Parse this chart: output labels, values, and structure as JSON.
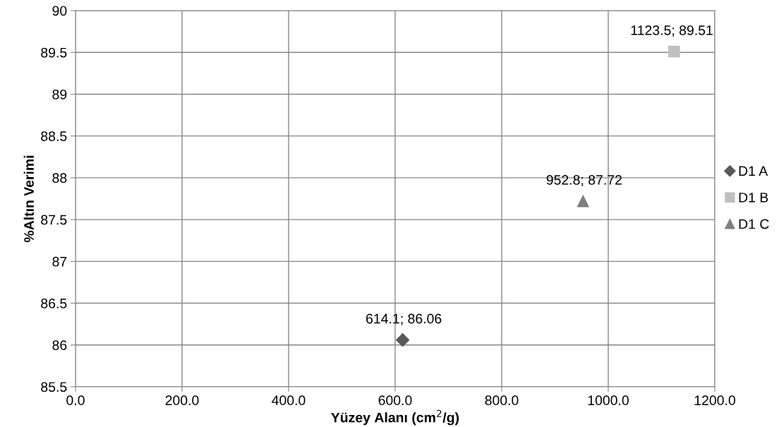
{
  "chart_data": {
    "type": "scatter",
    "xlabel": "Yüzey Alanı (cm$^{2}$/g)",
    "ylabel": "%Altın Verimi",
    "series": [
      {
        "name": "D1 A",
        "color": "#595959",
        "marker": "diamond",
        "x": [
          614.1
        ],
        "values": [
          86.06
        ],
        "value_labels": [
          "614.1; 86.06"
        ]
      },
      {
        "name": "D1 B",
        "color": "#bfbfbf",
        "marker": "square",
        "x": [
          1123.5
        ],
        "values": [
          89.51
        ],
        "value_labels": [
          "1123.5; 89.51"
        ]
      },
      {
        "name": "D1 C",
        "color": "#7f7f7f",
        "marker": "triangle",
        "x": [
          952.8
        ],
        "values": [
          87.72
        ],
        "value_labels": [
          "952.8; 87.72"
        ]
      }
    ],
    "xlim": [
      0,
      1200
    ],
    "xticks": [
      {
        "value": 0,
        "label": "0.0"
      },
      {
        "value": 200,
        "label": "200.0"
      },
      {
        "value": 400,
        "label": "400.0"
      },
      {
        "value": 600,
        "label": "600.0"
      },
      {
        "value": 800,
        "label": "800.0"
      },
      {
        "value": 1000,
        "label": "1000.0"
      },
      {
        "value": 1200,
        "label": "1200.0"
      }
    ],
    "ylim": [
      85.5,
      90
    ],
    "yticks": [
      85.5,
      86,
      86.5,
      87,
      87.5,
      88,
      88.5,
      89,
      89.5,
      90
    ],
    "grid": true,
    "legend": "right"
  }
}
